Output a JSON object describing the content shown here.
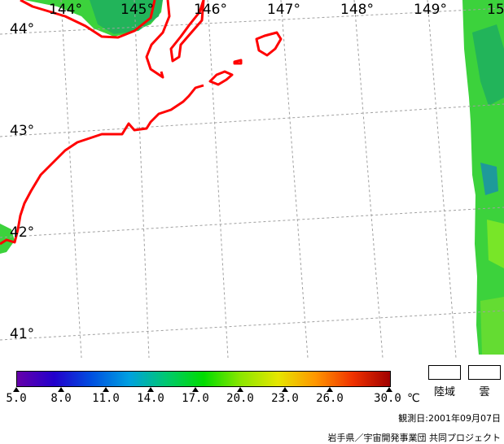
{
  "map": {
    "longitude_labels": [
      "144°",
      "145°",
      "146°",
      "147°",
      "148°",
      "149°",
      "15"
    ],
    "latitude_labels": [
      "44°",
      "43°",
      "42°",
      "41°"
    ],
    "coastline_color": "#ff0000",
    "graticule_color": "#a0a0a0",
    "land_color": "#ffffff"
  },
  "colorbar": {
    "ticks": [
      "5.0",
      "8.0",
      "11.0",
      "14.0",
      "17.0",
      "20.0",
      "23.0",
      "26.0",
      "30.0"
    ],
    "unit": "℃",
    "colors": [
      "#6600aa",
      "#2200cc",
      "#0050e0",
      "#00a0e0",
      "#00c870",
      "#00dc00",
      "#8ce600",
      "#e6e600",
      "#ff9600",
      "#f03200",
      "#a00000"
    ]
  },
  "legend": {
    "land_label": "陸域",
    "cloud_label": "雲"
  },
  "footer": {
    "observation_date": "観測日:2001年09月07日",
    "credit": "岩手県／宇宙開発事業団 共同プロジェクト"
  }
}
